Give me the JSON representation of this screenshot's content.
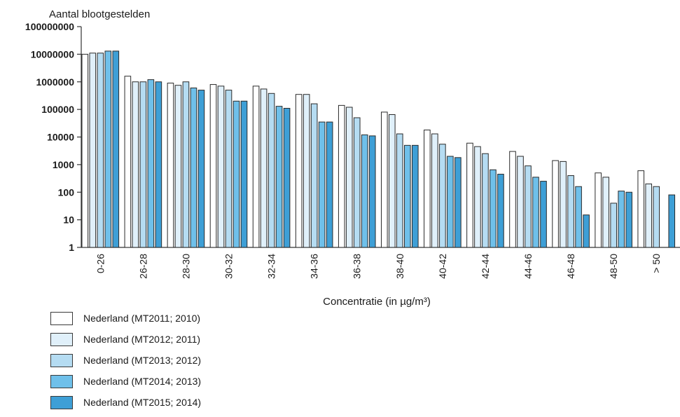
{
  "chart_data": {
    "type": "bar",
    "yscale": "log",
    "ylim": [
      1,
      100000000
    ],
    "yticks": [
      "1",
      "10",
      "100",
      "1000",
      "10000",
      "100000",
      "1000000",
      "10000000",
      "100000000"
    ],
    "ylabel": "Aantal blootgestelden",
    "xlabel": "Concentratie (in µg/m³)",
    "categories": [
      "0-26",
      "26-28",
      "28-30",
      "30-32",
      "32-34",
      "34-36",
      "36-38",
      "38-40",
      "40-42",
      "42-44",
      "44-46",
      "46-48",
      "48-50",
      "> 50"
    ],
    "series": [
      {
        "name": "Nederland (MT2011; 2010)",
        "color": "#ffffff",
        "values": [
          10000000,
          1600000,
          900000,
          800000,
          700000,
          350000,
          140000,
          80000,
          18000,
          6000,
          3000,
          1400,
          500,
          600
        ]
      },
      {
        "name": "Nederland (MT2012; 2011)",
        "color": "#e0f0fa",
        "values": [
          11000000,
          1000000,
          750000,
          700000,
          550000,
          350000,
          120000,
          65000,
          13000,
          4500,
          2000,
          1300,
          350,
          200
        ]
      },
      {
        "name": "Nederland (MT2013; 2012)",
        "color": "#b5dcf2",
        "values": [
          11000000,
          1000000,
          1000000,
          500000,
          380000,
          160000,
          50000,
          13000,
          5500,
          2500,
          900,
          400,
          40,
          160
        ]
      },
      {
        "name": "Nederland (MT2014; 2013)",
        "color": "#6fc0ea",
        "values": [
          13000000,
          1200000,
          600000,
          200000,
          130000,
          35000,
          12000,
          5000,
          2000,
          650,
          350,
          160,
          110,
          null
        ]
      },
      {
        "name": "Nederland (MT2015; 2014)",
        "color": "#3e9fd6",
        "values": [
          13000000,
          1000000,
          500000,
          200000,
          110000,
          35000,
          11000,
          5000,
          1800,
          450,
          250,
          15,
          100,
          80
        ]
      }
    ],
    "grid": false,
    "legend_position": "bottom-left"
  }
}
